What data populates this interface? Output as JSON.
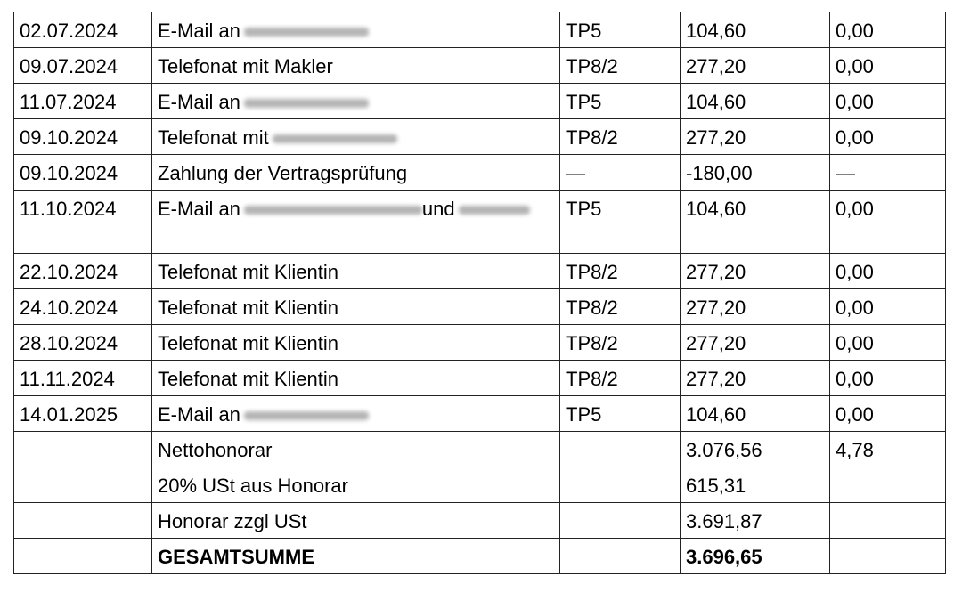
{
  "rows": [
    {
      "date": "02.07.2024",
      "desc": "E-Mail an",
      "redacted": true,
      "tp": "TP5",
      "amount": "104,60",
      "extra": "0,00"
    },
    {
      "date": "09.07.2024",
      "desc": "Telefonat mit Makler",
      "redacted": false,
      "tp": "TP8/2",
      "amount": "277,20",
      "extra": "0,00"
    },
    {
      "date": "11.07.2024",
      "desc": "E-Mail an",
      "redacted": true,
      "tp": "TP5",
      "amount": "104,60",
      "extra": "0,00"
    },
    {
      "date": "09.10.2024",
      "desc": "Telefonat mit",
      "redacted": true,
      "tp": "TP8/2",
      "amount": "277,20",
      "extra": "0,00"
    },
    {
      "date": "09.10.2024",
      "desc": "Zahlung der Vertragsprüfung",
      "redacted": false,
      "tp": "—",
      "amount": "-180,00",
      "extra": "—"
    },
    {
      "date": "11.10.2024",
      "desc": "E-Mail an",
      "desc2": "und",
      "redacted": true,
      "tall": true,
      "tp": "TP5",
      "amount": "104,60",
      "extra": "0,00"
    },
    {
      "date": "22.10.2024",
      "desc": "Telefonat mit Klientin",
      "redacted": false,
      "tp": "TP8/2",
      "amount": "277,20",
      "extra": "0,00"
    },
    {
      "date": "24.10.2024",
      "desc": "Telefonat mit Klientin",
      "redacted": false,
      "tp": "TP8/2",
      "amount": "277,20",
      "extra": "0,00"
    },
    {
      "date": "28.10.2024",
      "desc": "Telefonat mit Klientin",
      "redacted": false,
      "tp": "TP8/2",
      "amount": "277,20",
      "extra": "0,00"
    },
    {
      "date": "11.11.2024",
      "desc": "Telefonat mit Klientin",
      "redacted": false,
      "tp": "TP8/2",
      "amount": "277,20",
      "extra": "0,00"
    },
    {
      "date": "14.01.2025",
      "desc": "E-Mail an",
      "redacted": true,
      "tp": "TP5",
      "amount": "104,60",
      "extra": "0,00"
    }
  ],
  "summary": [
    {
      "label": "Nettohonorar",
      "amount": "3.076,56",
      "extra": "4,78",
      "bold": false
    },
    {
      "label": "20% USt aus Honorar",
      "amount": "615,31",
      "extra": "",
      "bold": false
    },
    {
      "label": "Honorar zzgl USt",
      "amount": "3.691,87",
      "extra": "",
      "bold": false
    },
    {
      "label": "GESAMTSUMME",
      "amount": "3.696,65",
      "extra": "",
      "bold": true
    }
  ]
}
